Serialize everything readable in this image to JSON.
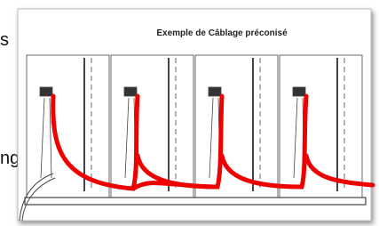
{
  "body_text": {
    "line_1_fragment": "s",
    "line_2_fragment": "ng"
  },
  "figure": {
    "title": "Exemple de Câblage préconisé"
  }
}
